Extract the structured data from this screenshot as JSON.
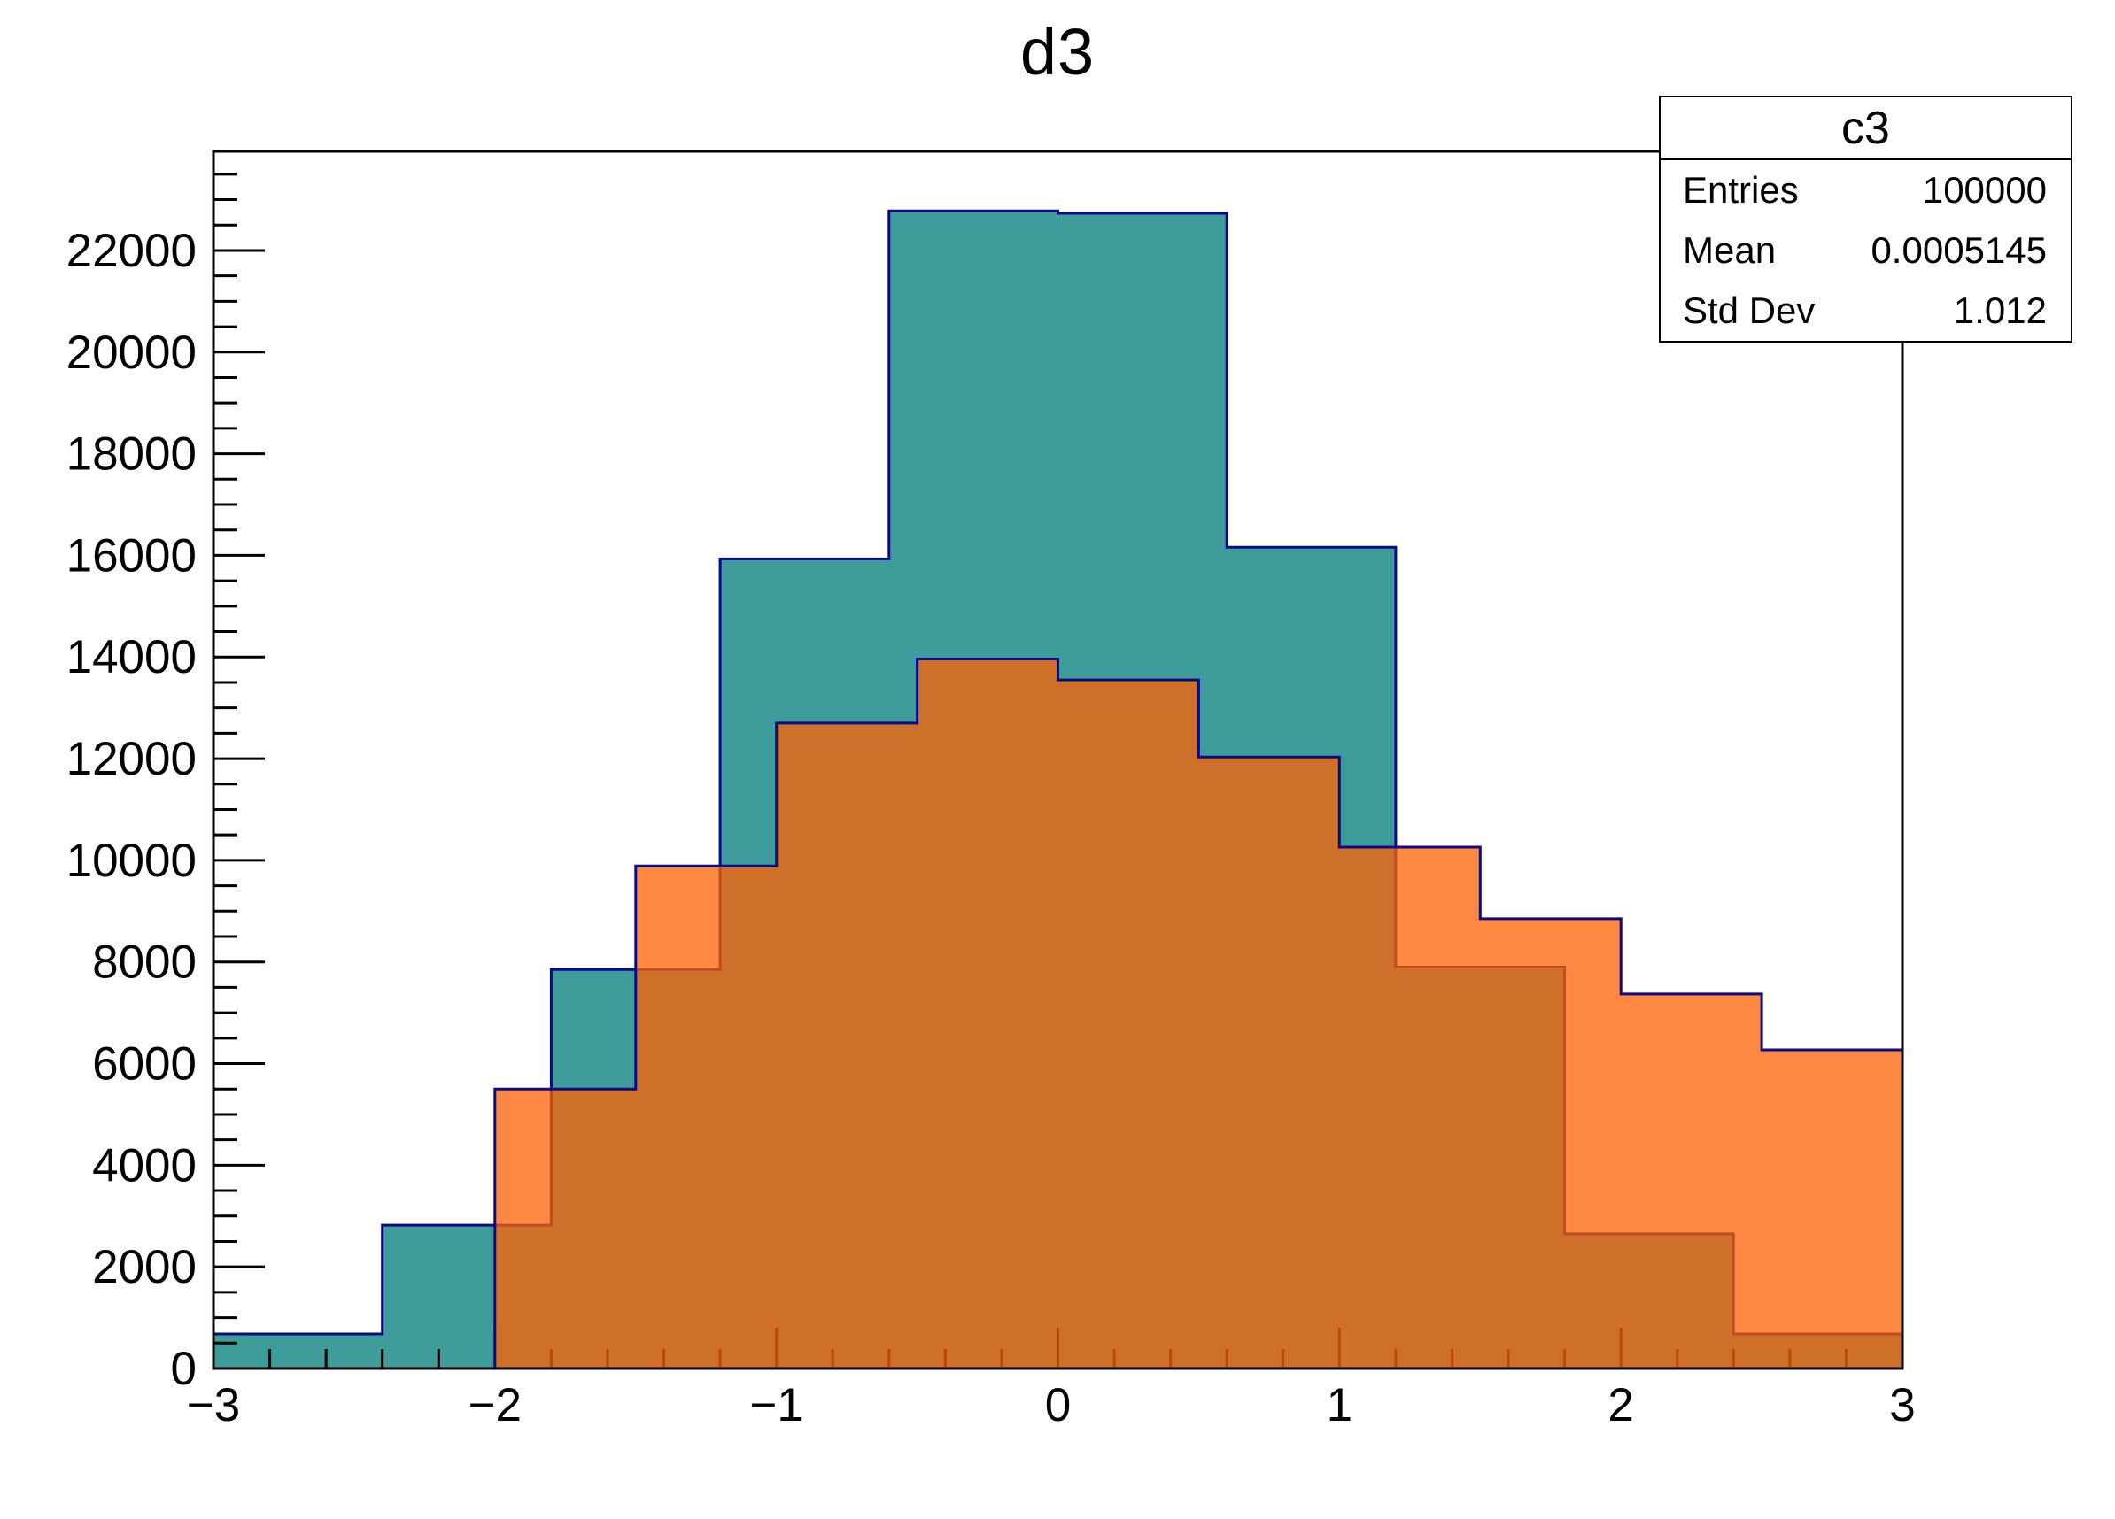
{
  "title": "d3",
  "chart_data": {
    "type": "bar",
    "subtype": "overlaid-step-histograms",
    "title": "d3",
    "xlabel": "",
    "ylabel": "",
    "xlim": [
      -3,
      3
    ],
    "ylim": [
      0,
      23950
    ],
    "grid": false,
    "x_tick_labels": [
      "−3",
      "−2",
      "−1",
      "0",
      "1",
      "2",
      "3"
    ],
    "x_major_ticks": [
      -3,
      -2,
      -1,
      0,
      1,
      2,
      3
    ],
    "x_minor_step": 0.2,
    "y_major_step": 2000,
    "y_minor_step": 500,
    "y_major_max": 22000,
    "y_tick_labels": [
      "0",
      "2000",
      "4000",
      "6000",
      "8000",
      "10000",
      "12000",
      "14000",
      "16000",
      "18000",
      "20000",
      "22000"
    ],
    "series": [
      {
        "name": "teal-histogram",
        "bin_start": -3,
        "bin_width": 0.6,
        "bin_edges": [
          -3,
          -2.4,
          -1.8,
          -1.2,
          -0.6,
          0,
          0.6,
          1.2,
          1.8,
          2.4,
          3
        ],
        "counts": [
          680,
          2820,
          7850,
          15930,
          22780,
          22730,
          16160,
          7900,
          2650,
          680
        ],
        "fill": "#3E9D9B",
        "fill_opacity": 1,
        "line": "#0A0A87"
      },
      {
        "name": "orange-histogram",
        "bin_start": -2,
        "bin_width": 0.5,
        "bin_edges": [
          -2,
          -1.5,
          -1,
          -0.5,
          0,
          0.5,
          1,
          1.5,
          2,
          2.5,
          3
        ],
        "counts": [
          5500,
          9890,
          12700,
          13960,
          13550,
          12030,
          10260,
          8850,
          7370,
          6270
        ],
        "fill": "#FF6103",
        "fill_opacity": 0.75,
        "line": "#0A0A87"
      }
    ],
    "stats": {
      "title": "c3",
      "rows": [
        {
          "label": "Entries",
          "value": "100000"
        },
        {
          "label": "Mean",
          "value": "0.0005145"
        },
        {
          "label": "Std Dev",
          "value": "1.012"
        }
      ]
    },
    "colors": {
      "frame": "#000000",
      "tick": "#000000",
      "teal_fill": "#3E9D9B",
      "orange_fill_rgba": "rgba(255,97,3,0.75)",
      "hist_border": "#0A0A87"
    }
  }
}
